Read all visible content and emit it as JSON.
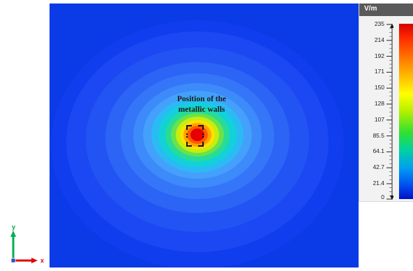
{
  "annotation": {
    "line1": "Position of the",
    "line2": "metallic walls"
  },
  "legend": {
    "unit": "V/m",
    "ticks": [
      "235",
      "214",
      "192",
      "171",
      "150",
      "128",
      "107",
      "85.5",
      "64.1",
      "42.7",
      "21.4",
      "0"
    ]
  },
  "axes": {
    "y_label": "y",
    "x_label": "x"
  },
  "colors": {
    "background_field": "#0a3be6",
    "hotspot": "#e60000",
    "axis_y": "#00b050",
    "axis_x": "#e00000"
  }
}
